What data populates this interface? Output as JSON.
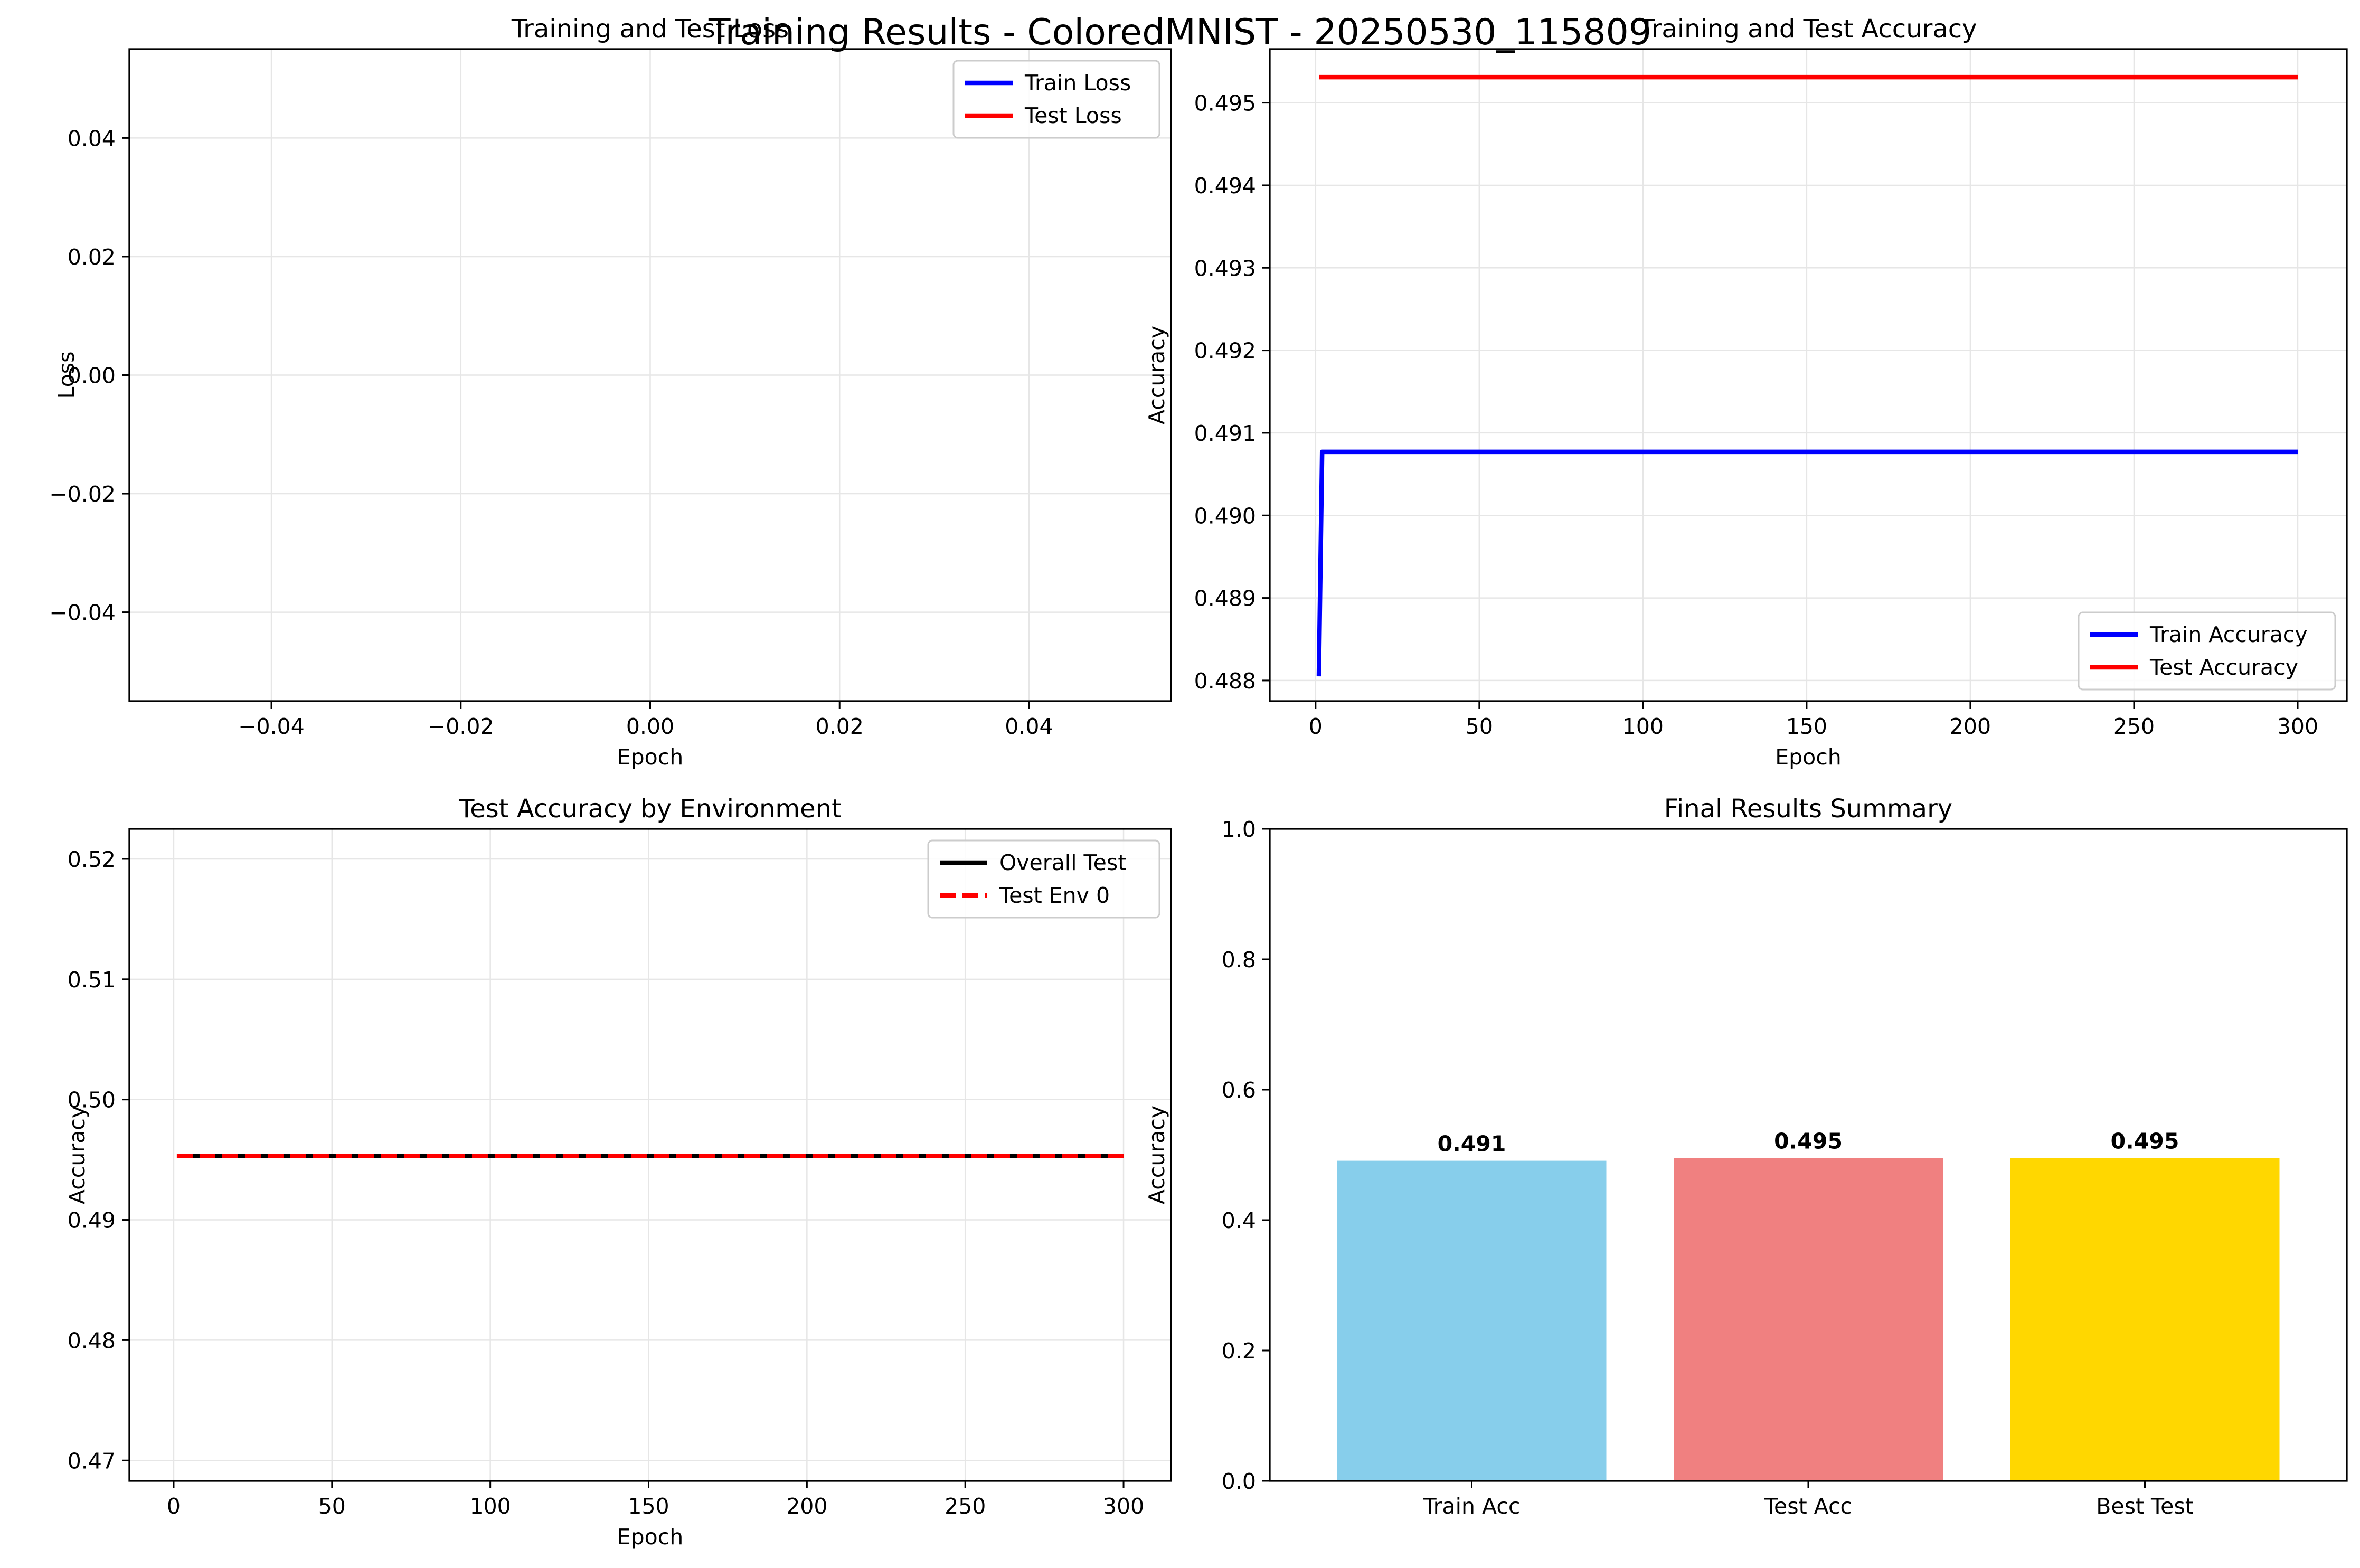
{
  "suptitle": "Training Results - ColoredMNIST - 20250530_115809",
  "colors": {
    "blue": "#0000ff",
    "red": "#ff0000",
    "black": "#000000",
    "grid": "#e6e6e6",
    "skyblue": "#87ceeb",
    "lightcoral": "#f08080",
    "gold": "#ffd700"
  },
  "chart_data": [
    {
      "type": "line",
      "title": "Training and Test Loss",
      "xlabel": "Epoch",
      "ylabel": "Loss",
      "xlim": [
        -0.055,
        0.055
      ],
      "ylim": [
        -0.055,
        0.055
      ],
      "xticks": [
        -0.04,
        -0.02,
        0.0,
        0.02,
        0.04
      ],
      "xtick_labels": [
        "−0.04",
        "−0.02",
        "0.00",
        "0.02",
        "0.04"
      ],
      "yticks": [
        -0.04,
        -0.02,
        0.0,
        0.02,
        0.04
      ],
      "ytick_labels": [
        "−0.04",
        "−0.02",
        "0.00",
        "0.02",
        "0.04"
      ],
      "grid": true,
      "legend_position": "top-right",
      "series": [
        {
          "name": "Train Loss",
          "color": "#0000ff",
          "style": "solid",
          "x": [],
          "y": []
        },
        {
          "name": "Test Loss",
          "color": "#ff0000",
          "style": "solid",
          "x": [],
          "y": []
        }
      ]
    },
    {
      "type": "line",
      "title": "Training and Test Accuracy",
      "xlabel": "Epoch",
      "ylabel": "Accuracy",
      "xlim": [
        -14,
        315
      ],
      "ylim": [
        0.48775,
        0.49565
      ],
      "xticks": [
        0,
        50,
        100,
        150,
        200,
        250,
        300
      ],
      "xtick_labels": [
        "0",
        "50",
        "100",
        "150",
        "200",
        "250",
        "300"
      ],
      "yticks": [
        0.488,
        0.489,
        0.49,
        0.491,
        0.492,
        0.493,
        0.494,
        0.495
      ],
      "ytick_labels": [
        "0.488",
        "0.489",
        "0.490",
        "0.491",
        "0.492",
        "0.493",
        "0.494",
        "0.495"
      ],
      "grid": true,
      "legend_position": "lower-right",
      "series": [
        {
          "name": "Train Accuracy",
          "color": "#0000ff",
          "style": "solid",
          "x": [
            1,
            2,
            300
          ],
          "y": [
            0.48805,
            0.49077,
            0.49077
          ]
        },
        {
          "name": "Test Accuracy",
          "color": "#ff0000",
          "style": "solid",
          "x": [
            1,
            300
          ],
          "y": [
            0.49531,
            0.49531
          ]
        }
      ]
    },
    {
      "type": "line",
      "title": "Test Accuracy by Environment",
      "xlabel": "Epoch",
      "ylabel": "Accuracy",
      "xlim": [
        -14,
        315
      ],
      "ylim": [
        0.4683,
        0.5225
      ],
      "xticks": [
        0,
        50,
        100,
        150,
        200,
        250,
        300
      ],
      "xtick_labels": [
        "0",
        "50",
        "100",
        "150",
        "200",
        "250",
        "300"
      ],
      "yticks": [
        0.47,
        0.48,
        0.49,
        0.5,
        0.51,
        0.52
      ],
      "ytick_labels": [
        "0.47",
        "0.48",
        "0.49",
        "0.50",
        "0.51",
        "0.52"
      ],
      "grid": true,
      "legend_position": "top-right",
      "series": [
        {
          "name": "Overall Test",
          "color": "#000000",
          "style": "solid",
          "x": [
            1,
            300
          ],
          "y": [
            0.49531,
            0.49531
          ]
        },
        {
          "name": "Test Env 0",
          "color": "#ff0000",
          "style": "dashed",
          "x": [
            1,
            300
          ],
          "y": [
            0.49531,
            0.49531
          ]
        }
      ]
    },
    {
      "type": "bar",
      "title": "Final Results Summary",
      "xlabel": "",
      "ylabel": "Accuracy",
      "ylim": [
        0,
        1.0
      ],
      "yticks": [
        0.0,
        0.2,
        0.4,
        0.6,
        0.8,
        1.0
      ],
      "ytick_labels": [
        "0.0",
        "0.2",
        "0.4",
        "0.6",
        "0.8",
        "1.0"
      ],
      "grid": false,
      "categories": [
        "Train Acc",
        "Test Acc",
        "Best Test"
      ],
      "values": [
        0.491,
        0.495,
        0.495
      ],
      "value_labels": [
        "0.491",
        "0.495",
        "0.495"
      ],
      "bar_colors": [
        "#87ceeb",
        "#f08080",
        "#ffd700"
      ]
    }
  ]
}
